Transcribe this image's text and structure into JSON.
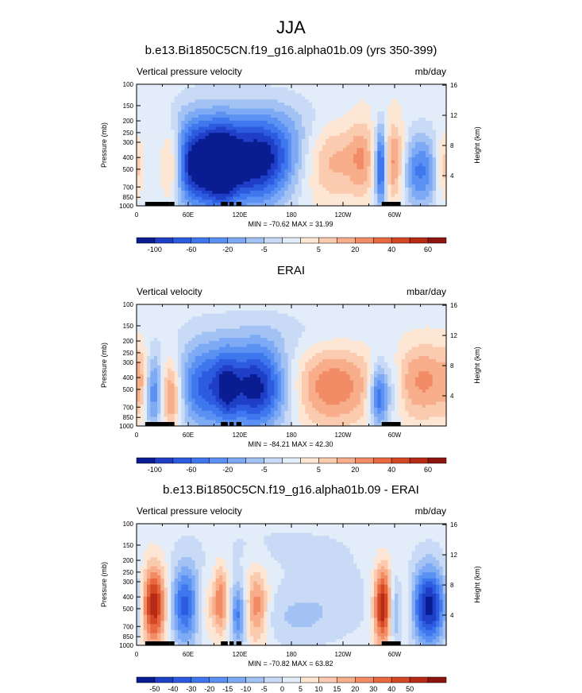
{
  "main_title": "JJA",
  "chart_data": [
    {
      "type": "heatmap",
      "title": "b.e13.Bi1850C5CN.f19_g16.alpha01b.09 (yrs 350-399)",
      "left_label": "Vertical pressure velocity",
      "right_label": "mb/day",
      "ylabel": "Pressure (mb)",
      "ylabel_right": "Height (km)",
      "x_ticks": [
        "0",
        "60E",
        "120E",
        "180",
        "120W",
        "60W"
      ],
      "y_ticks": [
        "100",
        "150",
        "200",
        "250",
        "300",
        "400",
        "500",
        "700",
        "850",
        "1000"
      ],
      "y_ticks_right": [
        "16",
        "12",
        "8",
        "4"
      ],
      "stats": "MIN = -70.62   MAX =  31.99",
      "colorbar_labels": [
        "-100",
        "-60",
        "-20",
        "-5",
        "5",
        "20",
        "40",
        "60"
      ],
      "colorbar_colors": [
        "#0a1c91",
        "#1f3fc7",
        "#2d5be0",
        "#3f77ee",
        "#5b91f3",
        "#7eaaf5",
        "#a3c2f4",
        "#c8daf6",
        "#e2edf9",
        "#fde6d3",
        "#fbcbb0",
        "#f8ad8b",
        "#f28c66",
        "#e8683f",
        "#d44824",
        "#b72a16",
        "#8e1410"
      ],
      "blobs": [
        {
          "x": 40,
          "p": 460,
          "rx": 9,
          "rp": 300,
          "v": 28
        },
        {
          "x": -3,
          "p": 480,
          "rx": 8,
          "rp": 260,
          "v": 18
        },
        {
          "x": 70,
          "p": 450,
          "rx": 22,
          "rp": 360,
          "v": -50
        },
        {
          "x": 100,
          "p": 470,
          "rx": 13,
          "rp": 330,
          "v": -32
        },
        {
          "x": 135,
          "p": 460,
          "rx": 32,
          "rp": 360,
          "v": -45
        },
        {
          "x": 172,
          "p": 350,
          "rx": 40,
          "rp": 220,
          "v": -18
        },
        {
          "x": 222,
          "p": 400,
          "rx": 32,
          "rp": 300,
          "v": 24
        },
        {
          "x": 262,
          "p": 400,
          "rx": 10,
          "rp": 280,
          "v": 14
        },
        {
          "x": 284,
          "p": 480,
          "rx": 5,
          "rp": 340,
          "v": -45
        },
        {
          "x": 300,
          "p": 440,
          "rx": 9,
          "rp": 300,
          "v": 26
        },
        {
          "x": 330,
          "p": 520,
          "rx": 16,
          "rp": 320,
          "v": -30
        },
        {
          "x": 180,
          "p": 190,
          "rx": 110,
          "rp": 80,
          "v": -6
        },
        {
          "x": 290,
          "p": 170,
          "rx": 45,
          "rp": 70,
          "v": 4
        }
      ]
    },
    {
      "type": "heatmap",
      "title": "ERAI",
      "left_label": "Vertical velocity",
      "right_label": "mbar/day",
      "ylabel": "Pressure (mb)",
      "ylabel_right": "Height (km)",
      "x_ticks": [
        "0",
        "60E",
        "120E",
        "180",
        "120W",
        "60W"
      ],
      "y_ticks": [
        "100",
        "150",
        "200",
        "250",
        "300",
        "400",
        "500",
        "700",
        "850",
        "1000"
      ],
      "y_ticks_right": [
        "16",
        "12",
        "8",
        "4"
      ],
      "stats": "MIN = -84.21   MAX =  42.30",
      "colorbar_labels": [
        "-100",
        "-60",
        "-20",
        "-5",
        "5",
        "20",
        "40",
        "60"
      ],
      "colorbar_colors": [
        "#0a1c91",
        "#1f3fc7",
        "#2d5be0",
        "#3f77ee",
        "#5b91f3",
        "#7eaaf5",
        "#a3c2f4",
        "#c8daf6",
        "#e2edf9",
        "#fde6d3",
        "#fbcbb0",
        "#f8ad8b",
        "#f28c66",
        "#e8683f",
        "#d44824",
        "#b72a16",
        "#8e1410"
      ],
      "blobs": [
        {
          "x": 20,
          "p": 520,
          "rx": 8,
          "rp": 340,
          "v": -30
        },
        {
          "x": 40,
          "p": 560,
          "rx": 9,
          "rp": 330,
          "v": 28
        },
        {
          "x": 80,
          "p": 470,
          "rx": 24,
          "rp": 360,
          "v": -34
        },
        {
          "x": 140,
          "p": 480,
          "rx": 26,
          "rp": 360,
          "v": -48
        },
        {
          "x": 105,
          "p": 480,
          "rx": 8,
          "rp": 300,
          "v": -14
        },
        {
          "x": 228,
          "p": 470,
          "rx": 36,
          "rp": 340,
          "v": 26
        },
        {
          "x": 282,
          "p": 560,
          "rx": 8,
          "rp": 300,
          "v": -40
        },
        {
          "x": 300,
          "p": 470,
          "rx": 8,
          "rp": 260,
          "v": -12
        },
        {
          "x": 335,
          "p": 430,
          "rx": 28,
          "rp": 300,
          "v": 22
        },
        {
          "x": 5,
          "p": 450,
          "rx": 6,
          "rp": 250,
          "v": 10
        },
        {
          "x": 180,
          "p": 180,
          "rx": 70,
          "rp": 70,
          "v": -5
        }
      ]
    },
    {
      "type": "heatmap",
      "title": "b.e13.Bi1850C5CN.f19_g16.alpha01b.09 - ERAI",
      "left_label": "Vertical pressure velocity",
      "right_label": "mb/day",
      "ylabel": "Pressure (mb)",
      "ylabel_right": "Height (km)",
      "x_ticks": [
        "0",
        "60E",
        "120E",
        "180",
        "120W",
        "60W"
      ],
      "y_ticks": [
        "100",
        "150",
        "200",
        "250",
        "300",
        "400",
        "500",
        "700",
        "850",
        "1000"
      ],
      "y_ticks_right": [
        "16",
        "12",
        "8",
        "4"
      ],
      "stats": "MIN = -70.82   MAX =  63.82",
      "colorbar_labels": [
        "-50",
        "-40",
        "-30",
        "-20",
        "-15",
        "-10",
        "-5",
        "0",
        "5",
        "10",
        "15",
        "20",
        "30",
        "40",
        "50"
      ],
      "colorbar_colors": [
        "#0a1c91",
        "#1f3fc7",
        "#2d5be0",
        "#3f77ee",
        "#5b91f3",
        "#7eaaf5",
        "#a3c2f4",
        "#c8daf6",
        "#e2edf9",
        "#fde6d3",
        "#fbcbb0",
        "#f8ad8b",
        "#f28c66",
        "#e8683f",
        "#d44824",
        "#b72a16",
        "#8e1410"
      ],
      "blobs": [
        {
          "x": 20,
          "p": 470,
          "rx": 10,
          "rp": 330,
          "v": 48
        },
        {
          "x": 57,
          "p": 470,
          "rx": 12,
          "rp": 330,
          "v": -40
        },
        {
          "x": 98,
          "p": 420,
          "rx": 6,
          "rp": 250,
          "v": 26
        },
        {
          "x": 118,
          "p": 560,
          "rx": 6,
          "rp": 300,
          "v": -30
        },
        {
          "x": 140,
          "p": 480,
          "rx": 9,
          "rp": 300,
          "v": 28
        },
        {
          "x": 80,
          "p": 500,
          "rx": 12,
          "rp": 220,
          "v": 12
        },
        {
          "x": 185,
          "p": 600,
          "rx": 30,
          "rp": 240,
          "v": -8
        },
        {
          "x": 225,
          "p": 430,
          "rx": 45,
          "rp": 300,
          "v": -6
        },
        {
          "x": 287,
          "p": 480,
          "rx": 8,
          "rp": 330,
          "v": 52
        },
        {
          "x": 300,
          "p": 520,
          "rx": 6,
          "rp": 300,
          "v": -26
        },
        {
          "x": 312,
          "p": 480,
          "rx": 7,
          "rp": 280,
          "v": 12
        },
        {
          "x": 340,
          "p": 480,
          "rx": 14,
          "rp": 330,
          "v": -52
        },
        {
          "x": 165,
          "p": 150,
          "rx": 80,
          "rp": 60,
          "v": -4
        }
      ]
    }
  ]
}
